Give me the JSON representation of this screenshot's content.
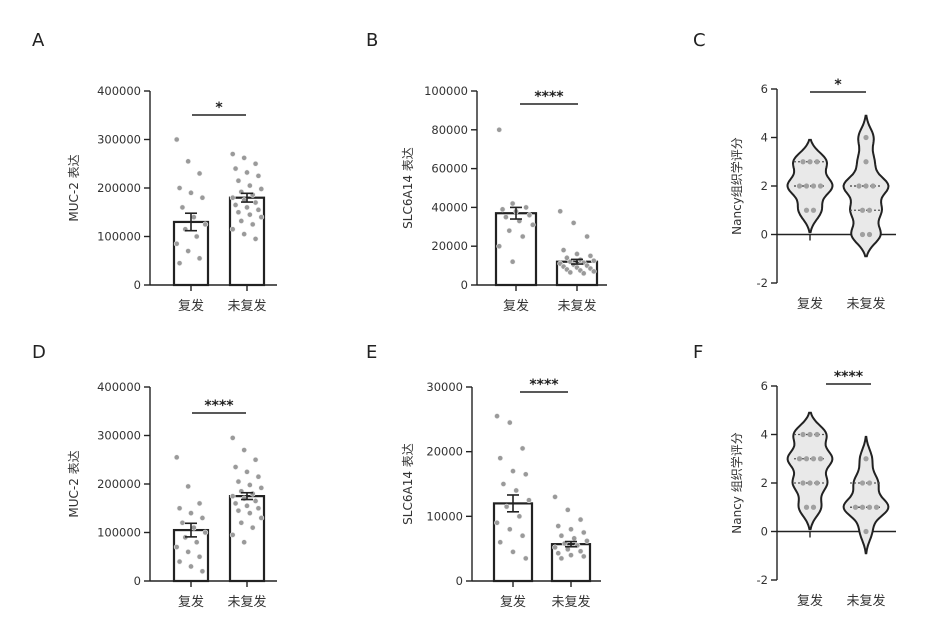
{
  "chart_data": [
    {
      "panel": "A",
      "type": "bar",
      "ylabel": "MUC-2 表达",
      "categories": [
        "复发",
        "未复发"
      ],
      "yticks": [
        "0",
        "100000",
        "200000",
        "300000",
        "400000"
      ],
      "ylim": [
        0,
        400000
      ],
      "means": [
        130000,
        180000
      ],
      "sem": [
        18000,
        9000
      ],
      "points": [
        [
          300000,
          255000,
          230000,
          200000,
          190000,
          180000,
          160000,
          140000,
          125000,
          115000,
          100000,
          85000,
          70000,
          55000,
          45000
        ],
        [
          270000,
          262000,
          250000,
          240000,
          232000,
          225000,
          215000,
          205000,
          198000,
          192000,
          186000,
          180000,
          175000,
          170000,
          165000,
          160000,
          155000,
          150000,
          145000,
          140000,
          132000,
          125000,
          115000,
          105000,
          95000
        ]
      ],
      "significance": "*"
    },
    {
      "panel": "B",
      "type": "bar",
      "ylabel": "SLC6A14 表达",
      "categories": [
        "复发",
        "未复发"
      ],
      "yticks": [
        "0",
        "20000",
        "40000",
        "60000",
        "80000",
        "100000"
      ],
      "ylim": [
        0,
        100000
      ],
      "means": [
        37000,
        12000
      ],
      "sem": [
        3000,
        1200
      ],
      "points": [
        [
          80000,
          42000,
          40000,
          39000,
          38000,
          36000,
          35000,
          33000,
          31000,
          28000,
          25000,
          20000,
          12000
        ],
        [
          38000,
          32000,
          25000,
          18000,
          16000,
          15000,
          14000,
          13000,
          12500,
          12000,
          11500,
          11000,
          10500,
          10000,
          9500,
          9000,
          8500,
          8000,
          7500,
          7000,
          6500,
          6000
        ]
      ],
      "significance": "****"
    },
    {
      "panel": "C",
      "type": "violin",
      "ylabel": "Nancy组织学评分",
      "categories": [
        "复发",
        "未复发"
      ],
      "yticks": [
        "-2",
        "0",
        "2",
        "4",
        "6"
      ],
      "ylim": [
        -2,
        6
      ],
      "points": [
        [
          3,
          3,
          3,
          2,
          2,
          2,
          2,
          1,
          1
        ],
        [
          4,
          3,
          2,
          2,
          2,
          1,
          1,
          0,
          0
        ]
      ],
      "significance": "*"
    },
    {
      "panel": "D",
      "type": "bar",
      "ylabel": "MUC-2 表达",
      "categories": [
        "复发",
        "未复发"
      ],
      "yticks": [
        "0",
        "100000",
        "200000",
        "300000",
        "400000"
      ],
      "ylim": [
        0,
        400000
      ],
      "means": [
        105000,
        175000
      ],
      "sem": [
        14000,
        7000
      ],
      "points": [
        [
          255000,
          195000,
          160000,
          150000,
          140000,
          130000,
          120000,
          110000,
          100000,
          90000,
          80000,
          70000,
          60000,
          50000,
          40000,
          30000,
          20000
        ],
        [
          295000,
          270000,
          250000,
          235000,
          225000,
          215000,
          205000,
          198000,
          192000,
          185000,
          180000,
          175000,
          170000,
          165000,
          160000,
          155000,
          150000,
          145000,
          140000,
          130000,
          120000,
          110000,
          95000,
          80000
        ]
      ],
      "significance": "****"
    },
    {
      "panel": "E",
      "type": "bar",
      "ylabel": "SLC6A14 表达",
      "categories": [
        "复发",
        "未复发"
      ],
      "yticks": [
        "0",
        "10000",
        "20000",
        "30000"
      ],
      "ylim": [
        0,
        30000
      ],
      "means": [
        12000,
        5700
      ],
      "sem": [
        1300,
        400
      ],
      "points": [
        [
          25500,
          24500,
          20500,
          19000,
          17000,
          16500,
          15000,
          14000,
          12500,
          11500,
          10000,
          9000,
          8000,
          7000,
          6000,
          4500,
          3500
        ],
        [
          13000,
          11000,
          9500,
          8500,
          8000,
          7500,
          7000,
          6600,
          6200,
          5800,
          5500,
          5200,
          4900,
          4600,
          4300,
          4000,
          3800,
          3500
        ]
      ],
      "significance": "****"
    },
    {
      "panel": "F",
      "type": "violin",
      "ylabel": "Nancy 组织学评分",
      "categories": [
        "复发",
        "未复发"
      ],
      "yticks": [
        "-2",
        "0",
        "2",
        "4",
        "6"
      ],
      "ylim": [
        -2,
        6
      ],
      "points": [
        [
          4,
          4,
          4,
          3,
          3,
          3,
          3,
          2,
          2,
          2,
          1,
          1
        ],
        [
          3,
          2,
          2,
          1,
          1,
          1,
          1,
          0
        ]
      ],
      "significance": "****"
    }
  ]
}
